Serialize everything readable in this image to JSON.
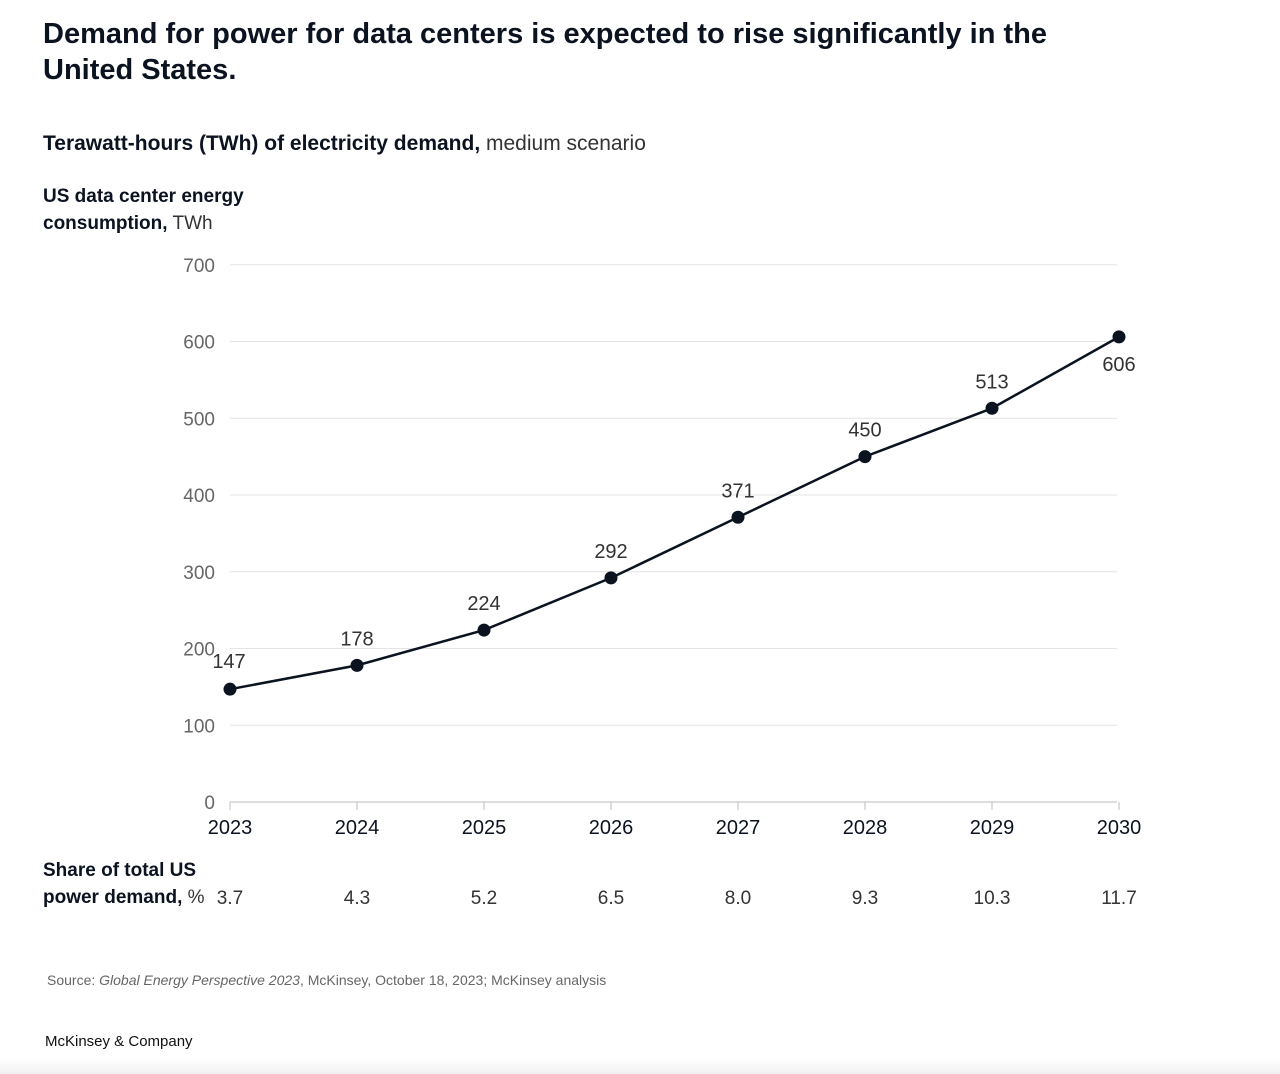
{
  "title": "Demand for power for data centers is expected to rise significantly in the United States.",
  "subtitle_bold": "Terawatt-hours (TWh) of electricity demand,",
  "subtitle_light": "medium scenario",
  "y_label_bold": "US data center energy consumption,",
  "y_label_unit": "TWh",
  "share_label_bold": "Share of total US power demand,",
  "share_label_unit": "%",
  "share_values": [
    "3.7",
    "4.3",
    "5.2",
    "6.5",
    "8.0",
    "9.3",
    "10.3",
    "11.7"
  ],
  "source_prefix": "Source:",
  "source_italic": "Global Energy Perspective 2023",
  "source_rest": ", McKinsey, October 18, 2023; McKinsey analysis",
  "brand": "McKinsey & Company",
  "colors": {
    "line": "#0b1220",
    "grid": "#e3e3e3",
    "axis": "#bdbdbd",
    "tick_text": "#666666"
  },
  "chart_data": {
    "type": "line",
    "title": "Demand for power for data centers is expected to rise significantly in the United States.",
    "xlabel": "",
    "ylabel": "US data center energy consumption, TWh",
    "categories": [
      "2023",
      "2024",
      "2025",
      "2026",
      "2027",
      "2028",
      "2029",
      "2030"
    ],
    "values": [
      147,
      178,
      224,
      292,
      371,
      450,
      513,
      606
    ],
    "ylim": [
      0,
      700
    ],
    "yticks": [
      0,
      100,
      200,
      300,
      400,
      500,
      600,
      700
    ],
    "grid": true
  }
}
